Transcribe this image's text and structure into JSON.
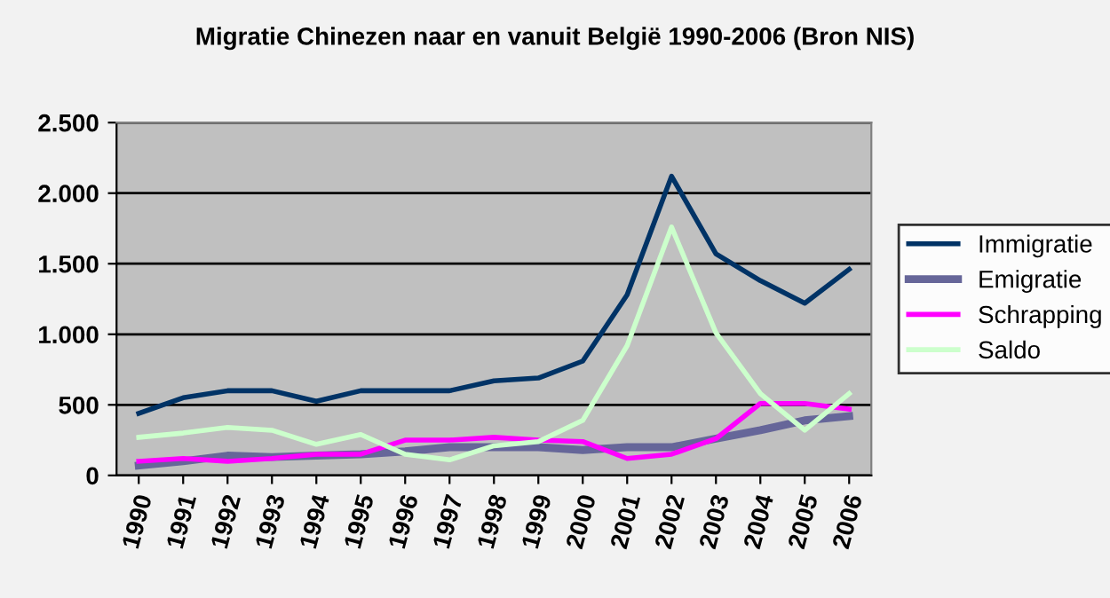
{
  "chart_data": {
    "type": "line",
    "title": "Migratie Chinezen naar en vanuit België 1990-2006 (Bron NIS)",
    "categories": [
      "1990",
      "1991",
      "1992",
      "1993",
      "1994",
      "1995",
      "1996",
      "1997",
      "1998",
      "1999",
      "2000",
      "2001",
      "2002",
      "2003",
      "2004",
      "2005",
      "2006"
    ],
    "series": [
      {
        "name": "Immigratie",
        "color": "#003366",
        "values": [
          440,
          550,
          600,
          600,
          525,
          600,
          600,
          600,
          670,
          690,
          810,
          1280,
          2120,
          1570,
          1380,
          1220,
          1460
        ]
      },
      {
        "name": "Emigratie",
        "color": "#666699",
        "values": [
          70,
          100,
          140,
          130,
          140,
          150,
          170,
          200,
          200,
          200,
          180,
          200,
          200,
          260,
          320,
          390,
          420
        ]
      },
      {
        "name": "Schrapping",
        "color": "#ff00ff",
        "values": [
          100,
          120,
          100,
          120,
          150,
          150,
          250,
          250,
          270,
          250,
          240,
          120,
          150,
          260,
          510,
          510,
          470
        ]
      },
      {
        "name": "Saldo",
        "color": "#ccffcc",
        "values": [
          270,
          300,
          340,
          320,
          220,
          290,
          150,
          110,
          210,
          240,
          390,
          920,
          1760,
          1010,
          580,
          320,
          580
        ]
      }
    ],
    "ylim": [
      0,
      2500
    ],
    "yticks": [
      {
        "value": 0,
        "label": "0"
      },
      {
        "value": 500,
        "label": "500"
      },
      {
        "value": 1000,
        "label": "1.000"
      },
      {
        "value": 1500,
        "label": "1.500"
      },
      {
        "value": 2000,
        "label": "2.000"
      },
      {
        "value": 2500,
        "label": "2.500"
      }
    ],
    "grid": "y",
    "legend": "right",
    "marker": "none",
    "line_style": "solid"
  }
}
